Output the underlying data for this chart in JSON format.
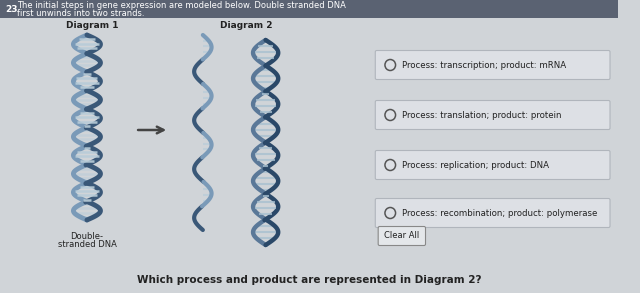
{
  "bg_color": "#d0d4d8",
  "top_strip_color": "#5a6272",
  "question_number": "23",
  "question_text_line1": "The initial steps in gene expression are modeled below. Double stranded DNA",
  "question_text_line2": "first unwinds into two strands.",
  "diagram1_label": "Diagram 1",
  "diagram2_label": "Diagram 2",
  "double_stranded_label": "Double-\nstranded DNA",
  "choices": [
    "Process: transcription; product: mRNA",
    "Process: translation; product: protein",
    "Process: replication; product: DNA",
    "Process: recombination; product: polymerase"
  ],
  "clear_all_text": "Clear All",
  "bottom_question": "Which process and product are represented in Diagram 2?",
  "choice_box_color": "#dde0e5",
  "choice_box_border": "#b0b5bc",
  "arrow_color": "#444444",
  "text_color": "#222222",
  "dna_color_light": "#a0b8cc",
  "dna_color_dark": "#3a5878",
  "dna_color_mid": "#6a8aaa",
  "dna_fill": "#c8d8e8"
}
